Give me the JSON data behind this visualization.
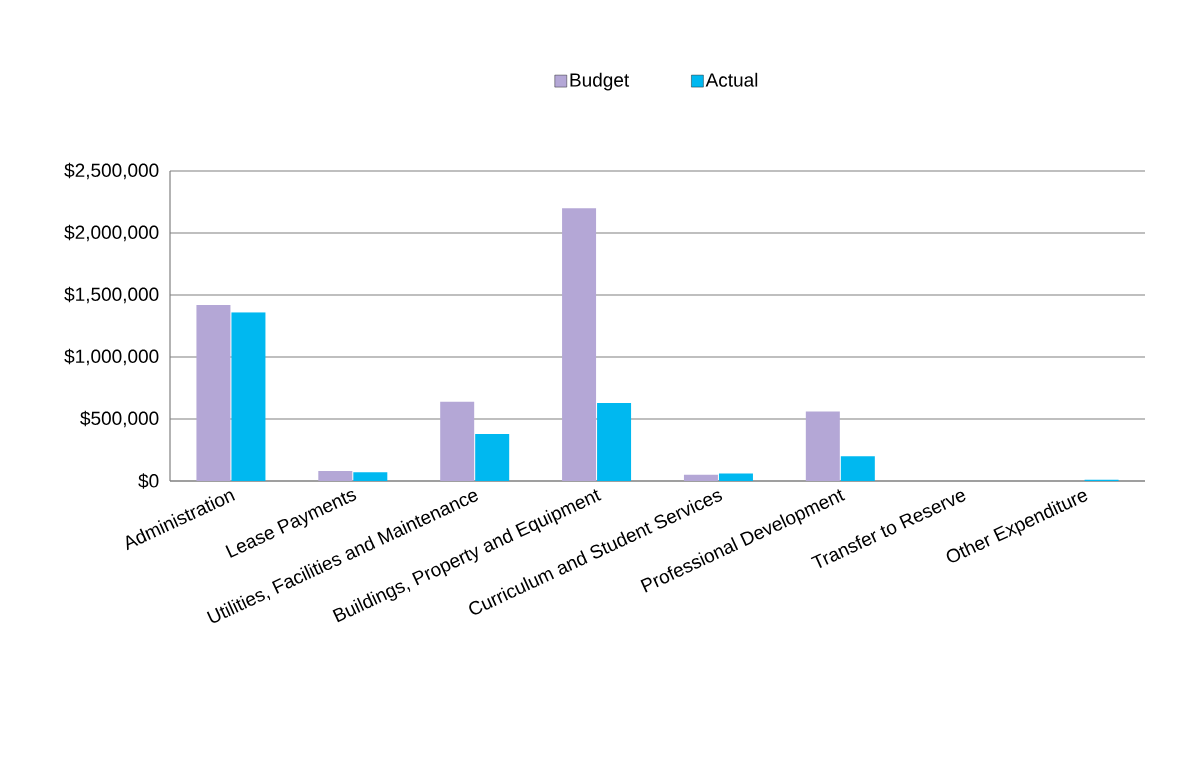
{
  "chart_data": {
    "type": "bar",
    "categories": [
      "Administration",
      "Lease Payments",
      "Utilities, Facilities and Maintenance",
      "Buildings, Property and Equipment",
      "Curriculum and Student Services",
      "Professional Development",
      "Transfer to Reserve",
      "Other Expenditure"
    ],
    "series": [
      {
        "name": "Budget",
        "color": "#b4a7d6",
        "values": [
          1420000,
          80000,
          640000,
          2200000,
          50000,
          560000,
          0,
          0
        ]
      },
      {
        "name": "Actual",
        "color": "#00b8f0",
        "values": [
          1360000,
          70000,
          380000,
          630000,
          60000,
          200000,
          0,
          10000
        ]
      }
    ],
    "ylim": [
      0,
      2500000
    ],
    "yticks": [
      {
        "value": 0,
        "label": "$0"
      },
      {
        "value": 500000,
        "label": "$500,000"
      },
      {
        "value": 1000000,
        "label": "$1,000,000"
      },
      {
        "value": 1500000,
        "label": "$1,500,000"
      },
      {
        "value": 2000000,
        "label": "$2,000,000"
      },
      {
        "value": 2500000,
        "label": "$2,500,000"
      }
    ],
    "grid": "y",
    "legend": "top"
  }
}
